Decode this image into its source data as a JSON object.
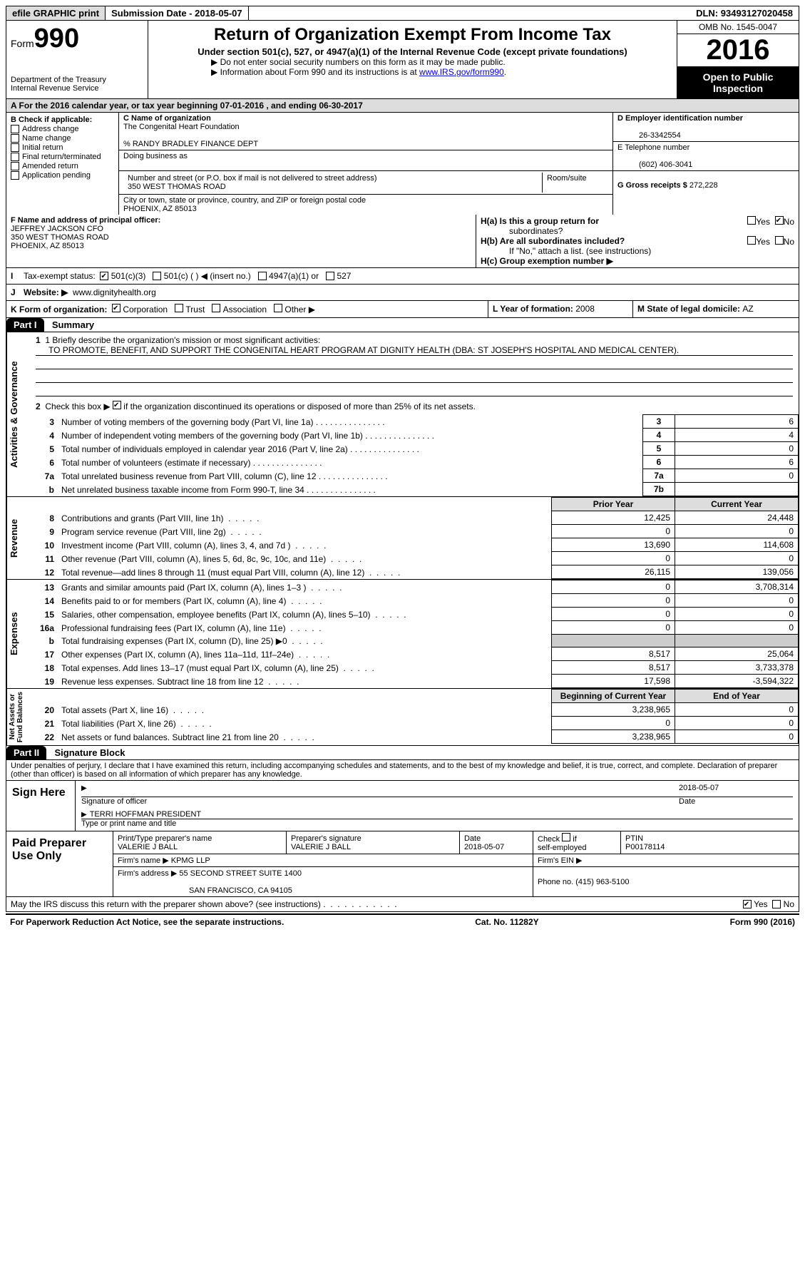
{
  "topbar": {
    "efile": "efile GRAPHIC print",
    "submission_label": "Submission Date - ",
    "submission_date": "2018-05-07",
    "dln_label": "DLN: ",
    "dln": "93493127020458"
  },
  "header": {
    "form_word": "Form",
    "form_num": "990",
    "dept1": "Department of the Treasury",
    "dept2": "Internal Revenue Service",
    "title": "Return of Organization Exempt From Income Tax",
    "sub1": "Under section 501(c), 527, or 4947(a)(1) of the Internal Revenue Code (except private foundations)",
    "bullet1": "▶ Do not enter social security numbers on this form as it may be made public.",
    "bullet2_pre": "▶ Information about Form 990 and its instructions is at ",
    "bullet2_link": "www.IRS.gov/form990",
    "omb": "OMB No. 1545-0047",
    "year": "2016",
    "open1": "Open to Public",
    "open2": "Inspection"
  },
  "rowA": "A  For the 2016 calendar year, or tax year beginning 07-01-2016   , and ending 06-30-2017",
  "B": {
    "hdr": "B Check if applicable:",
    "items": [
      "Address change",
      "Name change",
      "Initial return",
      "Final return/terminated",
      "Amended return",
      "Application pending"
    ]
  },
  "C": {
    "name_lbl": "C Name of organization",
    "name": "The Congenital Heart Foundation",
    "careof": "% RANDY BRADLEY FINANCE DEPT",
    "dba_lbl": "Doing business as",
    "addr_lbl": "Number and street (or P.O. box if mail is not delivered to street address)",
    "room_lbl": "Room/suite",
    "addr": "350 WEST THOMAS ROAD",
    "city_lbl": "City or town, state or province, country, and ZIP or foreign postal code",
    "city": "PHOENIX, AZ  85013"
  },
  "D": {
    "ein_lbl": "D Employer identification number",
    "ein": "26-3342554",
    "tel_lbl": "E Telephone number",
    "tel": "(602) 406-3041",
    "gross_lbl": "G Gross receipts $ ",
    "gross": "272,228"
  },
  "F": {
    "lbl": "F Name and address of principal officer:",
    "l1": "JEFFREY JACKSON CFO",
    "l2": "350 WEST THOMAS ROAD",
    "l3": "PHOENIX, AZ  85013"
  },
  "H": {
    "a": "H(a)  Is this a group return for",
    "a2": "subordinates?",
    "b": "H(b)  Are all subordinates included?",
    "b2": "If \"No,\" attach a list. (see instructions)",
    "c": "H(c)  Group exemption number ▶",
    "yes": "Yes",
    "no": "No"
  },
  "I": {
    "lbl": "Tax-exempt status:",
    "o1": "501(c)(3)",
    "o2": "501(c) (  ) ◀ (insert no.)",
    "o3": "4947(a)(1) or",
    "o4": "527"
  },
  "J": {
    "lbl": "Website: ▶",
    "val": "www.dignityhealth.org"
  },
  "K": {
    "lbl": "K Form of organization:",
    "o1": "Corporation",
    "o2": "Trust",
    "o3": "Association",
    "o4": "Other ▶"
  },
  "L": {
    "lbl": "L Year of formation: ",
    "val": "2008"
  },
  "M": {
    "lbl": "M State of legal domicile: ",
    "val": "AZ"
  },
  "partI": {
    "tag": "Part I",
    "title": "Summary"
  },
  "summary": {
    "l1a": "1  Briefly describe the organization's mission or most significant activities:",
    "l1b": "TO PROMOTE, BENEFIT, AND SUPPORT THE CONGENITAL HEART PROGRAM AT DIGNITY HEALTH (DBA: ST JOSEPH'S HOSPITAL AND MEDICAL CENTER).",
    "l2": "2   Check this box ▶        if the organization discontinued its operations or disposed of more than 25% of its net assets."
  },
  "gov_rows": [
    {
      "n": "3",
      "d": "Number of voting members of the governing body (Part VI, line 1a)",
      "box": "3",
      "v": "6"
    },
    {
      "n": "4",
      "d": "Number of independent voting members of the governing body (Part VI, line 1b)",
      "box": "4",
      "v": "4"
    },
    {
      "n": "5",
      "d": "Total number of individuals employed in calendar year 2016 (Part V, line 2a)",
      "box": "5",
      "v": "0"
    },
    {
      "n": "6",
      "d": "Total number of volunteers (estimate if necessary)",
      "box": "6",
      "v": "6"
    },
    {
      "n": "7a",
      "d": "Total unrelated business revenue from Part VIII, column (C), line 12",
      "box": "7a",
      "v": "0"
    },
    {
      "n": "b",
      "d": "Net unrelated business taxable income from Form 990-T, line 34",
      "box": "7b",
      "v": ""
    }
  ],
  "col_hdr": {
    "py": "Prior Year",
    "cy": "Current Year"
  },
  "rev_rows": [
    {
      "n": "8",
      "d": "Contributions and grants (Part VIII, line 1h)",
      "py": "12,425",
      "cy": "24,448"
    },
    {
      "n": "9",
      "d": "Program service revenue (Part VIII, line 2g)",
      "py": "0",
      "cy": "0"
    },
    {
      "n": "10",
      "d": "Investment income (Part VIII, column (A), lines 3, 4, and 7d )",
      "py": "13,690",
      "cy": "114,608"
    },
    {
      "n": "11",
      "d": "Other revenue (Part VIII, column (A), lines 5, 6d, 8c, 9c, 10c, and 11e)",
      "py": "0",
      "cy": "0"
    },
    {
      "n": "12",
      "d": "Total revenue—add lines 8 through 11 (must equal Part VIII, column (A), line 12)",
      "py": "26,115",
      "cy": "139,056"
    }
  ],
  "exp_rows": [
    {
      "n": "13",
      "d": "Grants and similar amounts paid (Part IX, column (A), lines 1–3 )",
      "py": "0",
      "cy": "3,708,314"
    },
    {
      "n": "14",
      "d": "Benefits paid to or for members (Part IX, column (A), line 4)",
      "py": "0",
      "cy": "0"
    },
    {
      "n": "15",
      "d": "Salaries, other compensation, employee benefits (Part IX, column (A), lines 5–10)",
      "py": "0",
      "cy": "0"
    },
    {
      "n": "16a",
      "d": "Professional fundraising fees (Part IX, column (A), line 11e)",
      "py": "0",
      "cy": "0"
    },
    {
      "n": "b",
      "d": "Total fundraising expenses (Part IX, column (D), line 25) ▶0",
      "py": "",
      "cy": "",
      "shade": true
    },
    {
      "n": "17",
      "d": "Other expenses (Part IX, column (A), lines 11a–11d, 11f–24e)",
      "py": "8,517",
      "cy": "25,064"
    },
    {
      "n": "18",
      "d": "Total expenses. Add lines 13–17 (must equal Part IX, column (A), line 25)",
      "py": "8,517",
      "cy": "3,733,378"
    },
    {
      "n": "19",
      "d": "Revenue less expenses. Subtract line 18 from line 12",
      "py": "17,598",
      "cy": "-3,594,322"
    }
  ],
  "na_hdr": {
    "py": "Beginning of Current Year",
    "cy": "End of Year"
  },
  "na_rows": [
    {
      "n": "20",
      "d": "Total assets (Part X, line 16)",
      "py": "3,238,965",
      "cy": "0"
    },
    {
      "n": "21",
      "d": "Total liabilities (Part X, line 26)",
      "py": "0",
      "cy": "0"
    },
    {
      "n": "22",
      "d": "Net assets or fund balances. Subtract line 21 from line 20",
      "py": "3,238,965",
      "cy": "0"
    }
  ],
  "sidelabels": {
    "gov": "Activities & Governance",
    "rev": "Revenue",
    "exp": "Expenses",
    "na": "Net Assets or\nFund Balances"
  },
  "partII": {
    "tag": "Part II",
    "title": "Signature Block"
  },
  "sig_decl": "Under penalties of perjury, I declare that I have examined this return, including accompanying schedules and statements, and to the best of my knowledge and belief, it is true, correct, and complete. Declaration of preparer (other than officer) is based on all information of which preparer has any knowledge.",
  "sign": {
    "left": "Sign Here",
    "date": "2018-05-07",
    "sig_lbl": "Signature of officer",
    "date_lbl": "Date",
    "name": "TERRI HOFFMAN  PRESIDENT",
    "name_lbl": "Type or print name and title"
  },
  "prep": {
    "left": "Paid Preparer Use Only",
    "r1c1_lbl": "Print/Type preparer's name",
    "r1c1": "VALERIE J BALL",
    "r1c2_lbl": "Preparer's signature",
    "r1c2": "VALERIE J BALL",
    "r1c3_lbl": "Date",
    "r1c3": "2018-05-07",
    "r1c4_lbl": "Check        if self-employed",
    "r1c5_lbl": "PTIN",
    "r1c5": "P00178114",
    "r2_lbl": "Firm's name    ▶ ",
    "r2": "KPMG LLP",
    "r2b_lbl": "Firm's EIN ▶",
    "r3_lbl": "Firm's address ▶ ",
    "r3a": "55 SECOND STREET SUITE 1400",
    "r3b": "SAN FRANCISCO, CA  94105",
    "r3c_lbl": "Phone no. ",
    "r3c": "(415) 963-5100"
  },
  "discuss": "May the IRS discuss this return with the preparer shown above? (see instructions)",
  "footer": {
    "l": "For Paperwork Reduction Act Notice, see the separate instructions.",
    "m": "Cat. No. 11282Y",
    "r": "Form 990 (2016)"
  }
}
